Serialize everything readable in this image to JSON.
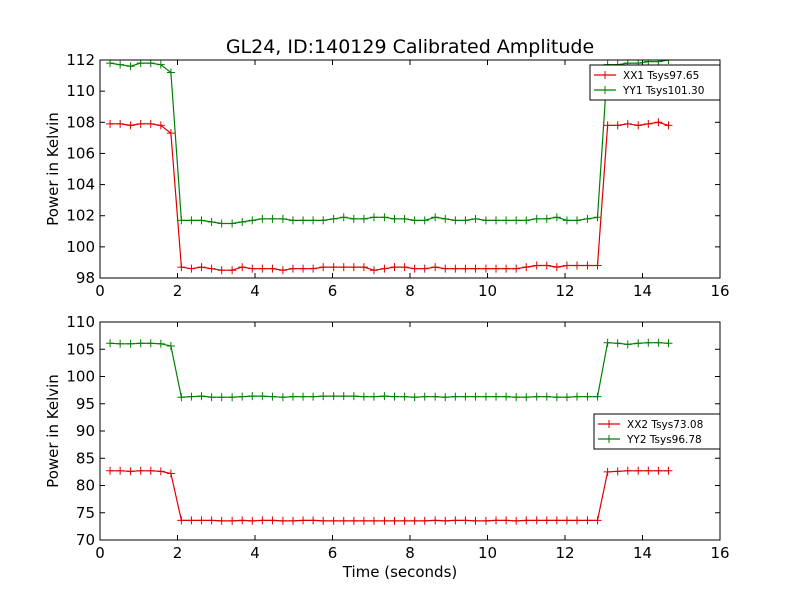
{
  "figure_title": "GL24, ID:140129 Calibrated Amplitude",
  "chart_data": [
    {
      "type": "line",
      "title": "GL24, ID:140129 Calibrated Amplitude",
      "xlabel": "",
      "ylabel": "Power in Kelvin",
      "xlim": [
        0,
        16
      ],
      "ylim": [
        98,
        112
      ],
      "xticks": [
        0,
        2,
        4,
        6,
        8,
        10,
        12,
        14,
        16
      ],
      "yticks": [
        98,
        100,
        102,
        104,
        106,
        108,
        110,
        112
      ],
      "grid": false,
      "legend": "top-right",
      "x": [
        0.26,
        0.52,
        0.79,
        1.05,
        1.31,
        1.57,
        1.83,
        2.1,
        2.36,
        2.62,
        2.88,
        3.14,
        3.41,
        3.67,
        3.93,
        4.19,
        4.45,
        4.72,
        4.98,
        5.24,
        5.5,
        5.76,
        6.03,
        6.29,
        6.55,
        6.81,
        7.07,
        7.34,
        7.6,
        7.86,
        8.12,
        8.38,
        8.65,
        8.91,
        9.17,
        9.43,
        9.69,
        9.96,
        10.22,
        10.48,
        10.74,
        11.0,
        11.27,
        11.53,
        11.79,
        12.05,
        12.31,
        12.58,
        12.84,
        13.1,
        13.36,
        13.62,
        13.89,
        14.15,
        14.41,
        14.67
      ],
      "series": [
        {
          "name": "XX1 Tsys97.65",
          "color": "#dd0000",
          "values": [
            107.9,
            107.9,
            107.8,
            107.9,
            107.9,
            107.8,
            107.3,
            98.7,
            98.6,
            98.7,
            98.6,
            98.5,
            98.5,
            98.7,
            98.6,
            98.6,
            98.6,
            98.5,
            98.6,
            98.6,
            98.6,
            98.7,
            98.7,
            98.7,
            98.7,
            98.7,
            98.5,
            98.6,
            98.7,
            98.7,
            98.6,
            98.6,
            98.7,
            98.6,
            98.6,
            98.6,
            98.6,
            98.6,
            98.6,
            98.6,
            98.6,
            98.7,
            98.8,
            98.8,
            98.7,
            98.8,
            98.8,
            98.8,
            98.8,
            107.8,
            107.8,
            107.9,
            107.8,
            107.9,
            108.0,
            107.8
          ]
        },
        {
          "name": "YY1 Tsys101.30",
          "color": "#008000",
          "values": [
            111.8,
            111.7,
            111.6,
            111.8,
            111.8,
            111.7,
            111.2,
            101.7,
            101.7,
            101.7,
            101.6,
            101.5,
            101.5,
            101.6,
            101.7,
            101.8,
            101.8,
            101.8,
            101.7,
            101.7,
            101.7,
            101.7,
            101.8,
            101.9,
            101.8,
            101.8,
            101.9,
            101.9,
            101.8,
            101.8,
            101.7,
            101.7,
            101.9,
            101.8,
            101.7,
            101.7,
            101.8,
            101.7,
            101.7,
            101.7,
            101.7,
            101.7,
            101.8,
            101.8,
            101.9,
            101.7,
            101.7,
            101.8,
            101.9,
            111.7,
            111.7,
            111.8,
            111.8,
            111.9,
            111.9,
            112.0
          ]
        }
      ]
    },
    {
      "type": "line",
      "title": "",
      "xlabel": "Time (seconds)",
      "ylabel": "Power in Kelvin",
      "xlim": [
        0,
        16
      ],
      "ylim": [
        70,
        110
      ],
      "xticks": [
        0,
        2,
        4,
        6,
        8,
        10,
        12,
        14,
        16
      ],
      "yticks": [
        70,
        75,
        80,
        85,
        90,
        95,
        100,
        105,
        110
      ],
      "grid": false,
      "legend": "center-right",
      "x": [
        0.26,
        0.52,
        0.79,
        1.05,
        1.31,
        1.57,
        1.83,
        2.1,
        2.36,
        2.62,
        2.88,
        3.14,
        3.41,
        3.67,
        3.93,
        4.19,
        4.45,
        4.72,
        4.98,
        5.24,
        5.5,
        5.76,
        6.03,
        6.29,
        6.55,
        6.81,
        7.07,
        7.34,
        7.6,
        7.86,
        8.12,
        8.38,
        8.65,
        8.91,
        9.17,
        9.43,
        9.69,
        9.96,
        10.22,
        10.48,
        10.74,
        11.0,
        11.27,
        11.53,
        11.79,
        12.05,
        12.31,
        12.58,
        12.84,
        13.1,
        13.36,
        13.62,
        13.89,
        14.15,
        14.41,
        14.67
      ],
      "series": [
        {
          "name": "XX2 Tsys73.08",
          "color": "#dd0000",
          "values": [
            82.7,
            82.7,
            82.6,
            82.7,
            82.7,
            82.6,
            82.2,
            73.6,
            73.6,
            73.6,
            73.6,
            73.5,
            73.5,
            73.6,
            73.5,
            73.6,
            73.6,
            73.5,
            73.5,
            73.6,
            73.6,
            73.5,
            73.5,
            73.5,
            73.5,
            73.5,
            73.5,
            73.5,
            73.5,
            73.5,
            73.5,
            73.5,
            73.6,
            73.5,
            73.6,
            73.6,
            73.5,
            73.5,
            73.6,
            73.6,
            73.5,
            73.6,
            73.6,
            73.6,
            73.6,
            73.6,
            73.6,
            73.6,
            73.6,
            82.5,
            82.6,
            82.7,
            82.7,
            82.7,
            82.7,
            82.7
          ]
        },
        {
          "name": "YY2 Tsys96.78",
          "color": "#008000",
          "values": [
            106.1,
            106.0,
            106.0,
            106.1,
            106.1,
            106.0,
            105.6,
            96.2,
            96.3,
            96.4,
            96.2,
            96.2,
            96.2,
            96.3,
            96.4,
            96.4,
            96.3,
            96.2,
            96.3,
            96.3,
            96.3,
            96.4,
            96.4,
            96.4,
            96.4,
            96.3,
            96.3,
            96.4,
            96.3,
            96.3,
            96.2,
            96.3,
            96.3,
            96.2,
            96.3,
            96.3,
            96.3,
            96.3,
            96.3,
            96.3,
            96.2,
            96.2,
            96.3,
            96.3,
            96.2,
            96.2,
            96.3,
            96.3,
            96.3,
            106.2,
            106.1,
            105.9,
            106.1,
            106.2,
            106.2,
            106.1
          ]
        }
      ]
    }
  ]
}
